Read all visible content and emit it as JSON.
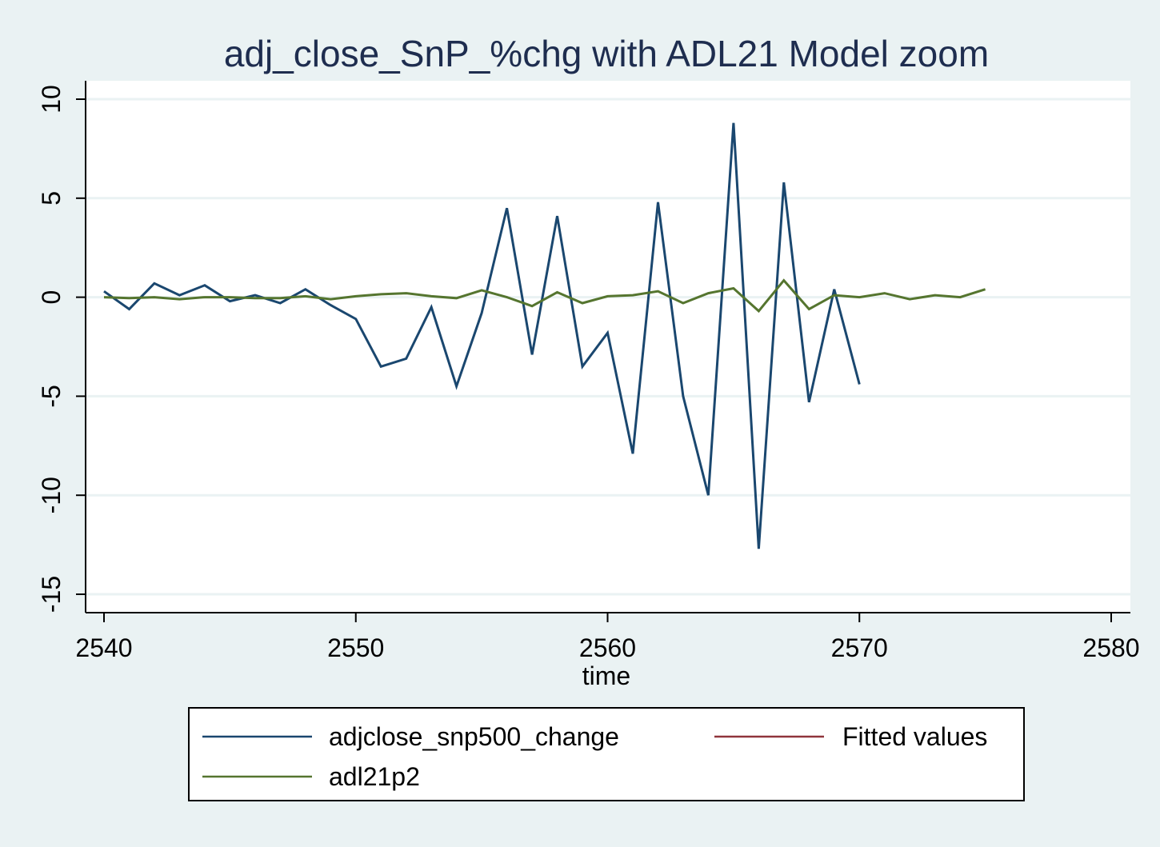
{
  "chart_data": {
    "type": "line",
    "title": "adj_close_SnP_%chg with ADL21 Model zoom",
    "xlabel": "time",
    "ylabel": "",
    "xlim": [
      2540,
      2580
    ],
    "ylim": [
      -16,
      11
    ],
    "x_ticks": [
      2540,
      2550,
      2560,
      2570,
      2580
    ],
    "x_tick_labels": [
      "2540",
      "2550",
      "2560",
      "2570",
      "2580"
    ],
    "y_ticks": [
      10,
      5,
      0,
      -5,
      -10,
      -15
    ],
    "y_tick_labels": [
      "10",
      "5",
      "0",
      "-5",
      "-10",
      "-15"
    ],
    "grid": true,
    "legend_position": "bottom",
    "series": [
      {
        "name": "adjclose_snp500_change",
        "color": "#1a476f",
        "x": [
          2540,
          2541,
          2542,
          2543,
          2544,
          2545,
          2546,
          2547,
          2548,
          2549,
          2550,
          2551,
          2552,
          2553,
          2554,
          2555,
          2556,
          2557,
          2558,
          2559,
          2560,
          2561,
          2562,
          2563,
          2564,
          2565,
          2566,
          2567,
          2568,
          2569,
          2570
        ],
        "values": [
          0.3,
          -0.6,
          0.7,
          0.1,
          0.6,
          -0.2,
          0.1,
          -0.3,
          0.4,
          -0.4,
          -1.1,
          -3.5,
          -3.1,
          -0.5,
          -4.5,
          -0.8,
          4.5,
          -2.9,
          4.1,
          -3.5,
          -1.8,
          -7.9,
          4.8,
          -5.0,
          -10.0,
          8.8,
          -12.7,
          5.8,
          -5.3,
          0.4,
          -4.4
        ]
      },
      {
        "name": "Fitted values",
        "color": "#90353b",
        "x": [],
        "values": []
      },
      {
        "name": "adl21p2",
        "color": "#55752f",
        "x": [
          2540,
          2541,
          2542,
          2543,
          2544,
          2545,
          2546,
          2547,
          2548,
          2549,
          2550,
          2551,
          2552,
          2553,
          2554,
          2555,
          2556,
          2557,
          2558,
          2559,
          2560,
          2561,
          2562,
          2563,
          2564,
          2565,
          2566,
          2567,
          2568,
          2569,
          2570,
          2571,
          2572,
          2573,
          2574,
          2575
        ],
        "values": [
          0.0,
          -0.05,
          0.0,
          -0.1,
          0.0,
          0.0,
          -0.05,
          -0.05,
          0.05,
          -0.1,
          0.05,
          0.15,
          0.2,
          0.05,
          -0.05,
          0.35,
          0.0,
          -0.45,
          0.25,
          -0.3,
          0.05,
          0.1,
          0.3,
          -0.3,
          0.2,
          0.45,
          -0.7,
          0.85,
          -0.6,
          0.1,
          0.0,
          0.2,
          -0.1,
          0.1,
          0.0,
          0.4
        ]
      }
    ],
    "legend": [
      {
        "label": "adjclose_snp500_change",
        "color": "#1a476f"
      },
      {
        "label": "Fitted values",
        "color": "#90353b"
      },
      {
        "label": "adl21p2",
        "color": "#55752f"
      }
    ]
  }
}
